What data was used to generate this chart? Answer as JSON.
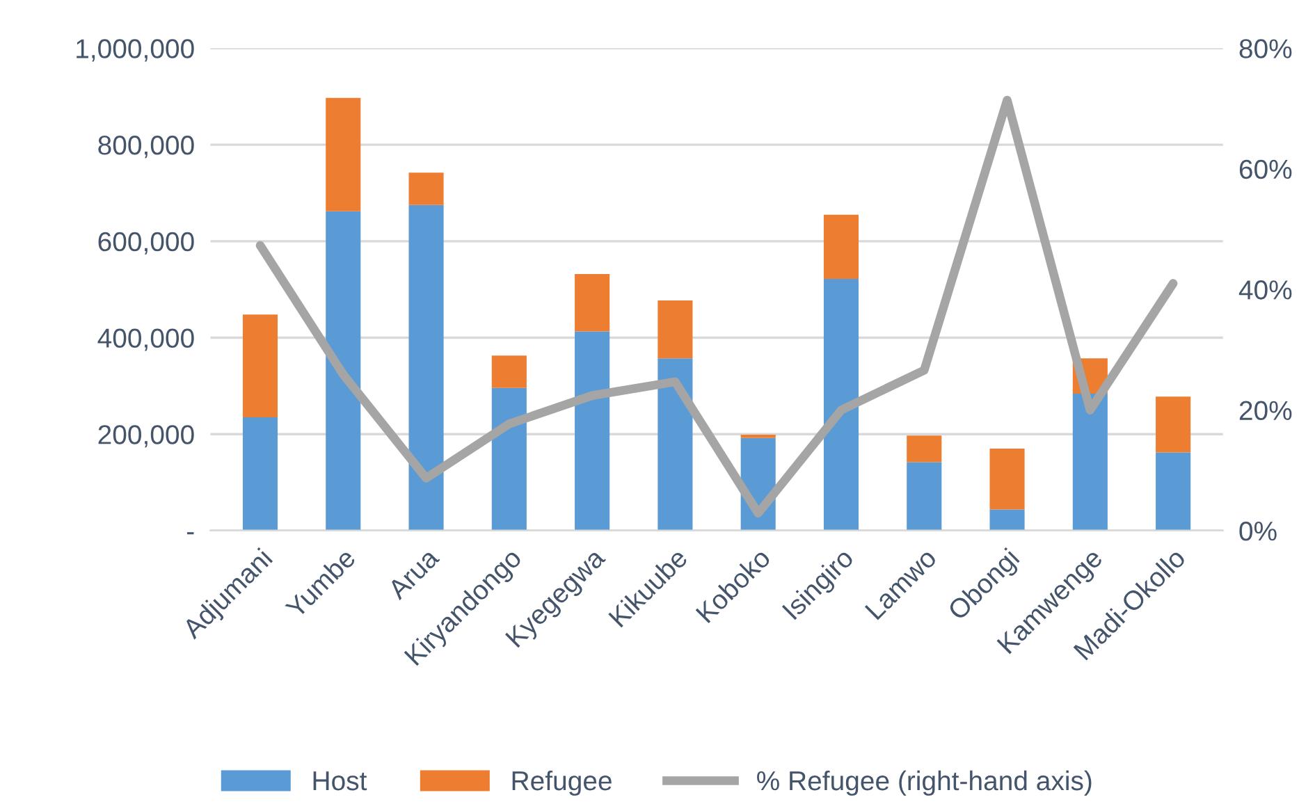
{
  "chart_data": {
    "type": "bar",
    "stacked": true,
    "categories": [
      "Adjumani",
      "Yumbe",
      "Arua",
      "Kiryandongo",
      "Kyegegwa",
      "Kikuube",
      "Koboko",
      "Isingiro",
      "Lamwo",
      "Obongi",
      "Kamwenge",
      "Madi-Okollo"
    ],
    "series": [
      {
        "name": "Host",
        "color": "#5b9bd5",
        "values": [
          235000,
          662000,
          675000,
          296000,
          413000,
          357000,
          192000,
          522000,
          142000,
          44000,
          284000,
          162000
        ]
      },
      {
        "name": "Refugee",
        "color": "#ed7d31",
        "values": [
          213000,
          235000,
          67000,
          67000,
          119000,
          120000,
          7000,
          133000,
          55000,
          126000,
          73000,
          116000
        ]
      },
      {
        "name": "% Refugee (right-hand axis)",
        "type": "line",
        "axis": "y2",
        "color": "#a5a5a5",
        "values": [
          47.3,
          25.9,
          8.7,
          17.7,
          22.4,
          24.7,
          2.9,
          20,
          26.6,
          71.4,
          20,
          41
        ]
      }
    ],
    "ylim": [
      0,
      1000000
    ],
    "yticks": [
      {
        "value": 0,
        "label": "-"
      },
      {
        "value": 200000,
        "label": "200,000"
      },
      {
        "value": 400000,
        "label": "400,000"
      },
      {
        "value": 600000,
        "label": "600,000"
      },
      {
        "value": 800000,
        "label": "800,000"
      },
      {
        "value": 1000000,
        "label": "1,000,000"
      }
    ],
    "y2lim": [
      0,
      80
    ],
    "y2ticks": [
      {
        "value": 0,
        "label": "0%"
      },
      {
        "value": 20,
        "label": "20%"
      },
      {
        "value": 40,
        "label": "40%"
      },
      {
        "value": 60,
        "label": "60%"
      },
      {
        "value": 80,
        "label": "80%"
      }
    ],
    "grid": "y",
    "legend": "bottom"
  }
}
